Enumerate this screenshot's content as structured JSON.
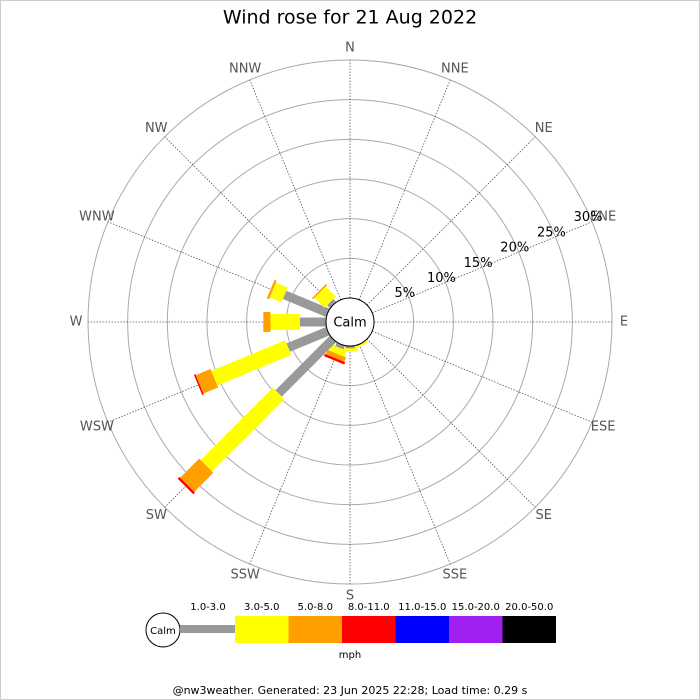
{
  "chart_data": {
    "type": "windrose",
    "title": "Wind rose for 21 Aug 2022",
    "directions": [
      "N",
      "NNE",
      "NE",
      "ENE",
      "E",
      "ESE",
      "SE",
      "SSE",
      "S",
      "SSW",
      "SW",
      "WSW",
      "W",
      "WNW",
      "NW",
      "NNW"
    ],
    "calm_label": "Calm",
    "rlim": [
      0,
      30
    ],
    "rticks": [
      {
        "value": 5,
        "label": "5%"
      },
      {
        "value": 10,
        "label": "10%"
      },
      {
        "value": 15,
        "label": "15%"
      },
      {
        "value": 20,
        "label": "20%"
      },
      {
        "value": 25,
        "label": "25%"
      },
      {
        "value": 30,
        "label": "30%"
      }
    ],
    "series": [
      {
        "name": "1.0-3.0",
        "color": "#999999",
        "values": [
          0,
          0,
          0,
          0,
          0,
          0,
          0,
          0,
          0.3,
          0.5,
          9.7,
          5.4,
          3.3,
          5.9,
          0.5,
          0
        ]
      },
      {
        "name": "3.0-5.0",
        "color": "#ffff00",
        "values": [
          0,
          0,
          0,
          0,
          0,
          0,
          0,
          0.3,
          0.4,
          0.8,
          12.9,
          10.1,
          3.7,
          1.6,
          1.8,
          0
        ]
      },
      {
        "name": "5.0-8.0",
        "color": "#ff9f00",
        "values": [
          0,
          0,
          0,
          0,
          0,
          0,
          0,
          0,
          0,
          0.6,
          3.4,
          2.0,
          0.9,
          0.3,
          0.2,
          0
        ]
      },
      {
        "name": "8.0-11.0",
        "color": "#ff0000",
        "values": [
          0,
          0,
          0,
          0,
          0,
          0,
          0,
          0,
          0,
          0.3,
          0.3,
          0.2,
          0,
          0,
          0,
          0
        ]
      },
      {
        "name": "11.0-15.0",
        "color": "#0000ff",
        "values": [
          0,
          0,
          0,
          0,
          0,
          0,
          0,
          0,
          0,
          0,
          0,
          0,
          0,
          0,
          0,
          0
        ]
      },
      {
        "name": "15.0-20.0",
        "color": "#a020f0",
        "values": [
          0,
          0,
          0,
          0,
          0,
          0,
          0,
          0,
          0,
          0,
          0,
          0,
          0,
          0,
          0,
          0
        ]
      },
      {
        "name": "20.0-50.0",
        "color": "#000000",
        "values": [
          0,
          0,
          0,
          0,
          0,
          0,
          0,
          0,
          0,
          0,
          0,
          0,
          0,
          0,
          0,
          0
        ]
      }
    ],
    "unit_label": "mph",
    "footer": "@nw3weather. Generated: 23 Jun 2025 22:28; Load time: 0.29 s"
  }
}
